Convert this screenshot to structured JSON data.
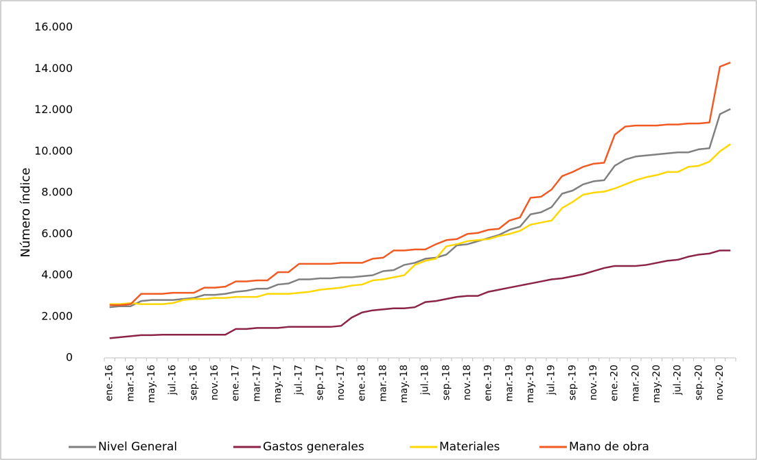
{
  "chart_data": {
    "type": "line",
    "y_label": "Número índice",
    "categories": [
      "ene.-16",
      null,
      "mar.-16",
      null,
      "may.-16",
      null,
      "jul.-16",
      null,
      "sep.-16",
      null,
      "nov.-16",
      null,
      "ene.-17",
      null,
      "mar.-17",
      null,
      "may.-17",
      null,
      "jul.-17",
      null,
      "sep.-17",
      null,
      "nov.-17",
      null,
      "ene.-18",
      null,
      "mar.-18",
      null,
      "may.-18",
      null,
      "jul.-18",
      null,
      "sep.-18",
      null,
      "nov.-18",
      null,
      "ene.-19",
      null,
      "mar.-19",
      null,
      "may.-19",
      null,
      "jul.-19",
      null,
      "sep.-19",
      null,
      "nov.-19",
      null,
      "ene.-20",
      null,
      "mar.-20",
      null,
      "may.-20",
      null,
      "jul.-20",
      null,
      "sep.-20",
      null,
      "nov.-20",
      null
    ],
    "series": [
      {
        "name": "Nivel General",
        "color": "#7f7f7f",
        "values": [
          2450,
          2500,
          2500,
          2750,
          2800,
          2800,
          2800,
          2850,
          2900,
          3050,
          3050,
          3100,
          3200,
          3250,
          3350,
          3350,
          3550,
          3600,
          3800,
          3800,
          3850,
          3850,
          3900,
          3900,
          3950,
          4000,
          4200,
          4250,
          4500,
          4600,
          4800,
          4850,
          5000,
          5450,
          5500,
          5650,
          5800,
          5950,
          6200,
          6350,
          6950,
          7050,
          7300,
          7950,
          8100,
          8400,
          8550,
          8600,
          9300,
          9600,
          9750,
          9800,
          9850,
          9900,
          9950,
          9950,
          10100,
          10150,
          11800,
          12050
        ]
      },
      {
        "name": "Gastos generales",
        "color": "#8b2345",
        "values": [
          950,
          1000,
          1050,
          1100,
          1100,
          1120,
          1120,
          1120,
          1120,
          1120,
          1120,
          1120,
          1400,
          1400,
          1450,
          1450,
          1450,
          1500,
          1500,
          1500,
          1500,
          1500,
          1550,
          1950,
          2200,
          2300,
          2350,
          2400,
          2400,
          2450,
          2700,
          2750,
          2850,
          2950,
          3000,
          3000,
          3200,
          3300,
          3400,
          3500,
          3600,
          3700,
          3800,
          3850,
          3950,
          4050,
          4200,
          4350,
          4450,
          4450,
          4450,
          4500,
          4600,
          4700,
          4750,
          4900,
          5000,
          5050,
          5200,
          5200
        ]
      },
      {
        "name": "Materiales",
        "color": "#ffd700",
        "values": [
          2600,
          2600,
          2650,
          2600,
          2600,
          2600,
          2650,
          2800,
          2850,
          2850,
          2900,
          2900,
          2950,
          2950,
          2950,
          3100,
          3100,
          3100,
          3150,
          3200,
          3300,
          3350,
          3400,
          3500,
          3550,
          3750,
          3800,
          3900,
          4000,
          4500,
          4700,
          4800,
          5400,
          5500,
          5650,
          5700,
          5750,
          5900,
          6000,
          6150,
          6450,
          6550,
          6650,
          7250,
          7550,
          7900,
          8000,
          8050,
          8200,
          8400,
          8600,
          8750,
          8850,
          9000,
          9000,
          9250,
          9300,
          9500,
          10000,
          10350
        ]
      },
      {
        "name": "Mano de obra",
        "color": "#f05a22",
        "values": [
          2550,
          2550,
          2600,
          3100,
          3100,
          3100,
          3150,
          3150,
          3150,
          3400,
          3400,
          3450,
          3700,
          3700,
          3750,
          3750,
          4150,
          4150,
          4550,
          4550,
          4550,
          4550,
          4600,
          4600,
          4600,
          4800,
          4850,
          5200,
          5200,
          5250,
          5250,
          5500,
          5700,
          5750,
          6000,
          6050,
          6200,
          6250,
          6650,
          6800,
          7750,
          7800,
          8150,
          8800,
          9000,
          9250,
          9400,
          9450,
          10800,
          11200,
          11250,
          11250,
          11250,
          11300,
          11300,
          11350,
          11350,
          11400,
          14100,
          14300
        ]
      }
    ],
    "ylim": [
      0,
      16000
    ],
    "yticks": [
      0,
      {
        "value": 2000,
        "label": "2.000"
      },
      {
        "value": 4000,
        "label": "4.000"
      },
      {
        "value": 6000,
        "label": "6.000"
      },
      {
        "value": 8000,
        "label": "8.000"
      },
      {
        "value": 10000,
        "label": "10.000"
      },
      {
        "value": 12000,
        "label": "12.000"
      },
      {
        "value": 14000,
        "label": "14.000"
      },
      {
        "value": 16000,
        "label": "16.000"
      }
    ],
    "grid": false,
    "legend": "bottom"
  }
}
